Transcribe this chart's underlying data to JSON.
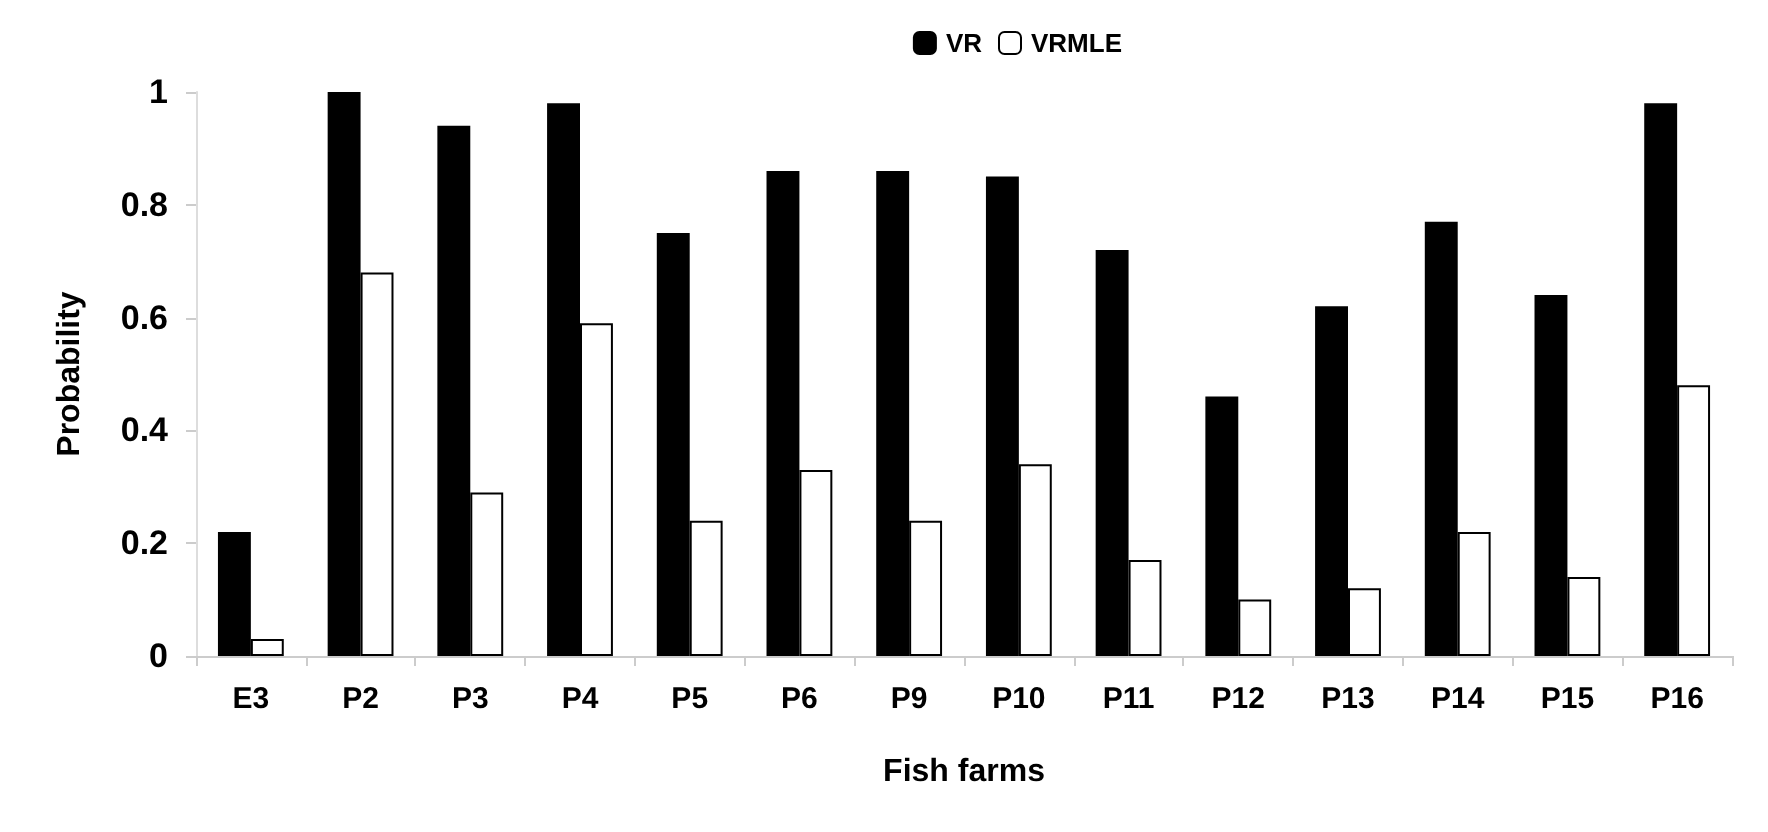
{
  "chart_data": {
    "type": "bar",
    "xlabel": "Fish farms",
    "ylabel": "Probability",
    "categories": [
      "E3",
      "P2",
      "P3",
      "P4",
      "P5",
      "P6",
      "P9",
      "P10",
      "P11",
      "P12",
      "P13",
      "P14",
      "P15",
      "P16"
    ],
    "series": [
      {
        "name": "VR",
        "color": "#000000",
        "values": [
          0.22,
          1.0,
          0.94,
          0.98,
          0.75,
          0.86,
          0.86,
          0.85,
          0.72,
          0.46,
          0.62,
          0.77,
          0.64,
          0.98
        ]
      },
      {
        "name": "VRMLE",
        "color": "#ffffff",
        "values": [
          0.03,
          0.68,
          0.29,
          0.59,
          0.24,
          0.33,
          0.24,
          0.34,
          0.17,
          0.1,
          0.12,
          0.22,
          0.14,
          0.48
        ]
      }
    ],
    "ylim": [
      0,
      1
    ],
    "yticks": [
      0,
      0.2,
      0.4,
      0.6,
      0.8,
      1
    ],
    "grid": false,
    "legend": "top right"
  }
}
